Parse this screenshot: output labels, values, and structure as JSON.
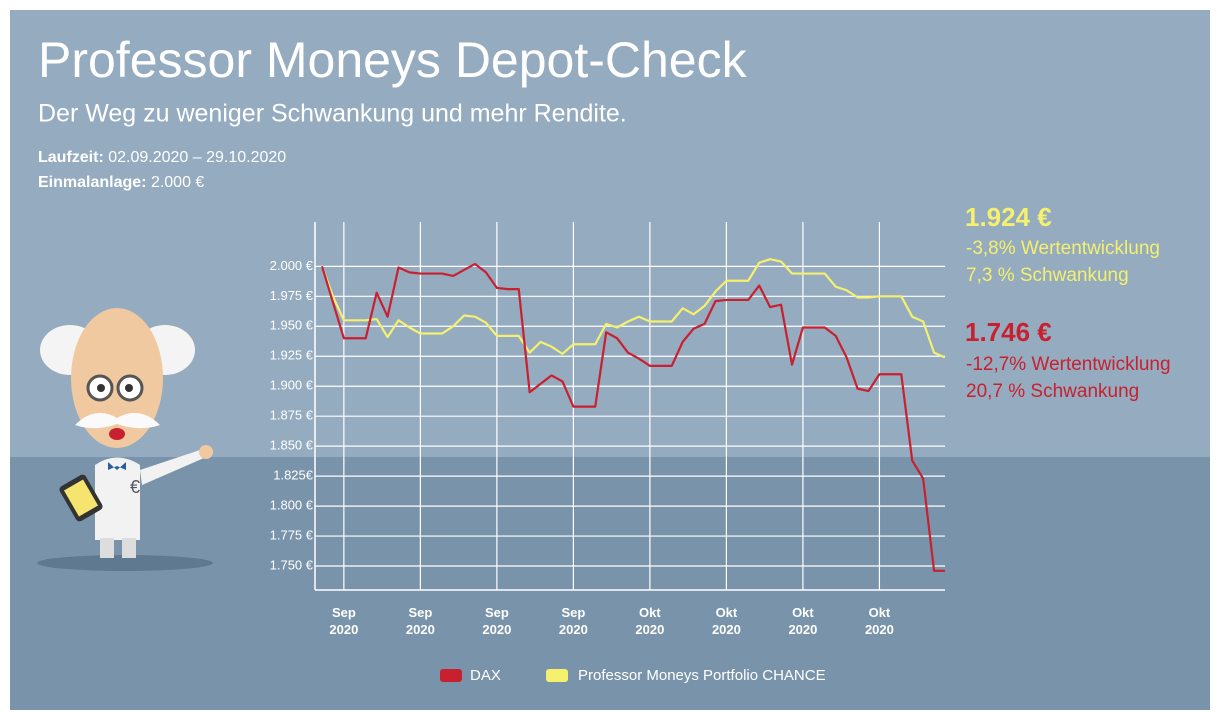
{
  "header": {
    "title": "Professor Moneys Depot-Check",
    "subtitle": "Der Weg zu weniger Schwankung und mehr Rendite.",
    "runtime_label": "Laufzeit:",
    "runtime": "02.09.2020 – 29.10.2020",
    "investment_label": "Einmalanlage:",
    "investment": "2.000 €"
  },
  "summary": [
    {
      "amount": "1.924 €",
      "performance": "-3,8% Wertentwicklung",
      "volatility": "7,3 % Schwankung"
    },
    {
      "amount": "1.746 €",
      "performance": "-12,7% Wertentwicklung",
      "volatility": "20,7 % Schwankung"
    }
  ],
  "chart_data": {
    "type": "line",
    "xlim": [
      0,
      57
    ],
    "ylim": [
      1730,
      2037
    ],
    "xticks": [
      {
        "value": 2,
        "label": "Sep 2020"
      },
      {
        "value": 9,
        "label": "Sep 2020"
      },
      {
        "value": 16,
        "label": "Sep 2020"
      },
      {
        "value": 23,
        "label": "Sep 2020"
      },
      {
        "value": 30,
        "label": "Okt 2020"
      },
      {
        "value": 37,
        "label": "Okt 2020"
      },
      {
        "value": 44,
        "label": "Okt 2020"
      },
      {
        "value": 51,
        "label": "Okt 2020"
      }
    ],
    "yticks": [
      {
        "value": 2000,
        "label": "2.000 €"
      },
      {
        "value": 1975,
        "label": "1.975 €"
      },
      {
        "value": 1950,
        "label": "1.950 €"
      },
      {
        "value": 1925,
        "label": "1.925 €"
      },
      {
        "value": 1900,
        "label": "1.900 €"
      },
      {
        "value": 1875,
        "label": "1.875 €"
      },
      {
        "value": 1850,
        "label": "1.850 €"
      },
      {
        "value": 1825,
        "label": "1.825€"
      },
      {
        "value": 1800,
        "label": "1.800 €"
      },
      {
        "value": 1775,
        "label": "1.775 €"
      },
      {
        "value": 1750,
        "label": "1.750 €"
      }
    ],
    "grid": true,
    "series": [
      {
        "name": "DAX",
        "color": "#c8202f",
        "x": [
          0,
          2,
          4,
          5,
          6,
          7,
          8,
          9,
          11,
          12,
          13,
          14,
          15,
          16,
          17,
          18,
          19,
          21,
          22,
          23,
          25,
          26,
          27,
          28,
          29,
          30,
          32,
          33,
          34,
          35,
          36,
          37,
          39,
          40,
          41,
          42,
          43,
          44,
          46,
          47,
          48,
          49,
          50,
          51,
          53,
          54,
          55,
          56,
          57
        ],
        "values": [
          2000,
          1940,
          1940,
          1978,
          1958,
          1999,
          1995,
          1994,
          1994,
          1992,
          1997,
          2002,
          1995,
          1982,
          1981,
          1981,
          1895,
          1909,
          1904,
          1883,
          1883,
          1945,
          1940,
          1928,
          1923,
          1917,
          1917,
          1937,
          1948,
          1952,
          1971,
          1972,
          1972,
          1984,
          1966,
          1968,
          1918,
          1949,
          1949,
          1942,
          1924,
          1898,
          1896,
          1910,
          1910,
          1838,
          1823,
          1746,
          1746
        ]
      },
      {
        "name": "Professor Moneys Portfolio CHANCE",
        "color": "#f5f06e",
        "x": [
          0,
          1,
          2,
          4,
          5,
          6,
          7,
          8,
          9,
          11,
          12,
          13,
          14,
          15,
          16,
          18,
          19,
          20,
          21,
          22,
          23,
          25,
          26,
          27,
          28,
          29,
          30,
          32,
          33,
          34,
          35,
          36,
          37,
          39,
          40,
          41,
          42,
          43,
          44,
          46,
          47,
          48,
          49,
          50,
          51,
          53,
          54,
          55,
          56,
          57
        ],
        "values": [
          2000,
          1975,
          1955,
          1955,
          1956,
          1941,
          1955,
          1949,
          1944,
          1944,
          1950,
          1959,
          1958,
          1953,
          1942,
          1942,
          1928,
          1937,
          1933,
          1927,
          1935,
          1935,
          1952,
          1949,
          1954,
          1958,
          1954,
          1954,
          1965,
          1960,
          1967,
          1979,
          1988,
          1988,
          2003,
          2006,
          2004,
          1994,
          1994,
          1994,
          1983,
          1980,
          1974,
          1974,
          1975,
          1975,
          1958,
          1954,
          1928,
          1924
        ]
      }
    ]
  }
}
